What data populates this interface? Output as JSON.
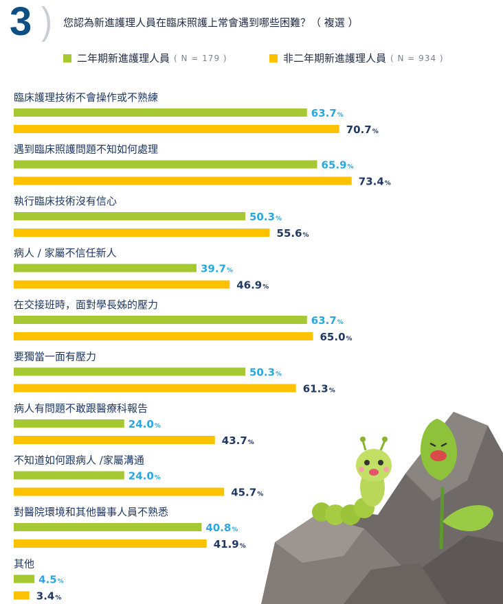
{
  "header": {
    "number": "3",
    "question": "您認為新進護理人員在臨床照護上常會遇到哪些困難？（ 複選 ）"
  },
  "legend": [
    {
      "label": "二年期新進護理人員",
      "n": "( N = 179 )",
      "color": "#a6c833"
    },
    {
      "label": "非二年期新進護理人員",
      "n": "( N = 934 )",
      "color": "#fcc200"
    }
  ],
  "colors": {
    "series_a": "#a6c833",
    "series_b": "#fcc200",
    "value_a": "#2aa7de",
    "value_b": "#1f3864",
    "category_text": "#1f3864"
  },
  "chart_data": {
    "type": "bar",
    "orientation": "horizontal",
    "unit": "%",
    "categories": [
      "臨床護理技術不會操作或不熟練",
      "遇到臨床照護問題不知如何處理",
      "執行臨床技術沒有信心",
      "病人 / 家屬不信任新人",
      "在交接班時，面對學長姊的壓力",
      "要獨當一面有壓力",
      "病人有問題不敢跟醫療科報告",
      "不知道如何跟病人 /家屬溝通",
      "對醫院環境和其他醫事人員不熟悉",
      "其他"
    ],
    "series": [
      {
        "name": "二年期新進護理人員",
        "values": [
          63.7,
          65.9,
          50.3,
          39.7,
          63.7,
          50.3,
          24.0,
          24.0,
          40.8,
          4.5
        ]
      },
      {
        "name": "非二年期新進護理人員",
        "values": [
          70.7,
          73.4,
          55.6,
          46.9,
          65.0,
          61.3,
          43.7,
          45.7,
          41.9,
          3.4
        ]
      }
    ],
    "value_labels": [
      [
        "63.7",
        "65.9",
        "50.3",
        "39.7",
        "63.7",
        "50.3",
        "24.0",
        "24.0",
        "40.8",
        "4.5"
      ],
      [
        "70.7",
        "73.4",
        "55.6",
        "46.9",
        "65.0",
        "61.3",
        "43.7",
        "45.7",
        "41.9",
        "3.4"
      ]
    ],
    "xlim": [
      0,
      100
    ],
    "grid": false,
    "legend_position": "top"
  }
}
